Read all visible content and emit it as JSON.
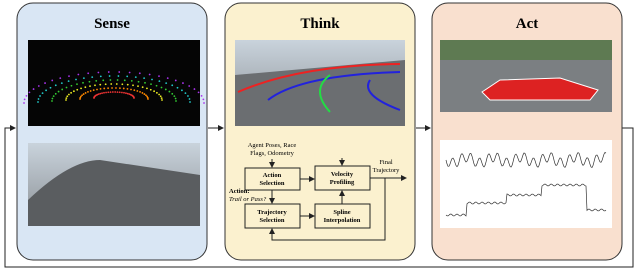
{
  "panels": [
    {
      "title": "Sense"
    },
    {
      "title": "Think"
    },
    {
      "title": "Act"
    }
  ],
  "flowchart": {
    "inputs": [
      "Agent Poses, Race",
      "Flags, Odometry"
    ],
    "action_selection": [
      "Action",
      "Selection"
    ],
    "velocity_profiling": [
      "Velocity",
      "Profiling"
    ],
    "final_trajectory": [
      "Final",
      "Trajectory"
    ],
    "action_question": [
      "Action:",
      "Trail or Pass?"
    ],
    "trajectory_selection": [
      "Trajectory",
      "Selection"
    ],
    "spline_interpolation": [
      "Spline",
      "Interpolation"
    ]
  }
}
